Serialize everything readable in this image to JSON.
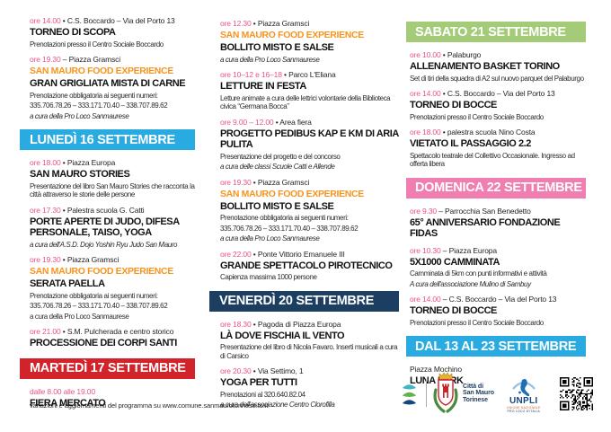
{
  "colors": {
    "time_pink": "#e9538c",
    "brand_orange": "#f7941e",
    "text": "#231f20",
    "banner_lightblue": "#29abe2",
    "banner_red": "#d2232a",
    "banner_navy": "#1c3e60",
    "banner_green": "#a4cc78",
    "banner_pink": "#f07eb0"
  },
  "footer": {
    "text": "variazioni e aggiornamenti del programma su www.comune.sanmaurotorinese.to.it"
  },
  "logos": {
    "arcs_icon": "festival-arcs-logo",
    "crest_icon": "san-mauro-coat-of-arms",
    "qr_icon": "qr-code",
    "city": {
      "line1": "Città di",
      "line2": "San Mauro",
      "line3": "Torinese"
    },
    "unpli": {
      "label": "UNPLI",
      "sub1": "UNIONE NAZIONALE",
      "sub2": "PRO LOCO D'ITALIA"
    }
  },
  "columns": [
    {
      "blocks": [
        {
          "kind": "event",
          "time": "ore 14.00",
          "sep": "•",
          "place": "C.S. Boccardo – Via del Porto 13",
          "title": "TORNEO DI SCOPA",
          "lines": [
            {
              "t": "Prenotazioni presso il Centro Sociale Boccardo"
            }
          ]
        },
        {
          "kind": "event",
          "time": "ore 19.30",
          "sep": "–",
          "place": "Piazza Gramsci",
          "brand": "SAN MAURO FOOD EXPERIENCE",
          "title": "GRAN GRIGLIATA MISTA DI CARNE",
          "lines": [
            {
              "t": "Prenotazione obbligatoria ai seguenti numeri:"
            },
            {
              "t": "335.706.78.26 – 333.171.70.40 – 338.707.89.62"
            },
            {
              "t": "a cura della Pro Loco Sanmaurese",
              "i": true
            }
          ]
        },
        {
          "kind": "banner",
          "label": "LUNEDÌ 16 SETTEMBRE",
          "color": "#29abe2"
        },
        {
          "kind": "event",
          "time": "ore 18.00",
          "sep": "•",
          "place": "Piazza Europa",
          "title": "SAN MAURO STORIES",
          "lines": [
            {
              "t": "Presentazione del libro San Mauro Stories che racconta la città attraverso le storie delle persone"
            }
          ]
        },
        {
          "kind": "event",
          "time": "ore 17.30",
          "sep": "•",
          "place": "Palestra scuola G. Catti",
          "title": "PORTE APERTE DI JUDO, DIFESA PERSONALE, TAISO, YOGA",
          "lines": [
            {
              "t": "a cura dell'A.S.D. Dojo Yoshin Ryu Judo San Mauro",
              "i": true
            }
          ]
        },
        {
          "kind": "event",
          "time": "ore 19.30",
          "sep": "•",
          "place": "Piazza Gramsci",
          "brand": "SAN MAURO FOOD EXPERIENCE",
          "title": "SERATA PAELLA",
          "lines": [
            {
              "t": "Prenotazione obbligatoria ai seguenti numeri:"
            },
            {
              "t": "335.706.78.26 – 333.171.70.40 – 338.707.89.62"
            },
            {
              "t": "a cura della Pro Loco Sanmaurese"
            }
          ]
        },
        {
          "kind": "event",
          "time": "ore 21.00",
          "sep": "•",
          "place": "S.M. Pulcherada e centro storico",
          "title": "PROCESSIONE DEI CORPI SANTI",
          "lines": []
        },
        {
          "kind": "banner",
          "label": "MARTEDÌ 17 SETTEMBRE",
          "color": "#d2232a"
        },
        {
          "kind": "event",
          "time": "dalle 8.00 alle 19.00",
          "sep": "",
          "place": "",
          "title": "FIERA MERCATO",
          "lines": []
        }
      ]
    },
    {
      "blocks": [
        {
          "kind": "event",
          "time": "ore 12.30",
          "sep": "•",
          "place": "Piazza Gramsci",
          "brand": "SAN MAURO FOOD EXPERIENCE",
          "title": "BOLLITO MISTO E SALSE",
          "lines": [
            {
              "t": "a cura della Pro Loco Sanmaurese",
              "i": true
            }
          ]
        },
        {
          "kind": "event",
          "time": "ore 10–12 e 16–18",
          "sep": "•",
          "place": "Parco L'Eliana",
          "title": "LETTURE IN FESTA",
          "lines": [
            {
              "t": "Letture animate a cura delle lettrici volontarie della Biblioteca civica “Germana Bocca”"
            }
          ]
        },
        {
          "kind": "event",
          "time": "ore 9.00 – 12.00",
          "sep": "•",
          "place": "Area fiera",
          "title": "PROGETTO PEDIBUS KAP E KM DI ARIA PULITA",
          "lines": [
            {
              "t": "Presentazione del progetto e del concorso"
            },
            {
              "t": "a cura delle classi Scuole Catti e Allende",
              "i": true
            }
          ]
        },
        {
          "kind": "event",
          "time": "ore 19.30",
          "sep": "•",
          "place": "Piazza Gramsci",
          "brand": "SAN MAURO FOOD EXPERIENCE",
          "title": "BOLLITO MISTO E SALSE",
          "lines": [
            {
              "t": "Prenotazione obbligatoria ai seguenti numeri:"
            },
            {
              "t": "335.706.78.26 – 333.171.70.40 – 338.707.89.62"
            },
            {
              "t": "a cura della Pro Loco Sanmaurese",
              "i": true
            }
          ]
        },
        {
          "kind": "event",
          "time": "ore 22.00",
          "sep": "•",
          "place": "Ponte Vittorio Emanuele III",
          "title": "GRANDE SPETTACOLO PIROTECNICO",
          "lines": [
            {
              "t": "Capienza massima 1000 persone"
            }
          ]
        },
        {
          "kind": "banner",
          "label": "VENERDÌ 20 SETTEMBRE",
          "color": "#1c3e60"
        },
        {
          "kind": "event",
          "time": "ore 18.30",
          "sep": "•",
          "place": "Pagoda di Piazza Europa",
          "title": "LÀ DOVE FISCHIA IL VENTO",
          "lines": [
            {
              "t": "Presentazione del libro di Nicola Favaro. Inserti musicali a cura di Carsico"
            }
          ]
        },
        {
          "kind": "event",
          "time": "ore 20.30",
          "sep": "•",
          "place": "Via Settimo, 1",
          "title": "YOGA PER TUTTI",
          "lines": [
            {
              "t": "Prenotazioni al 320.640.82.04"
            },
            {
              "t": "a cura dell'associazione Centro Clorofilla",
              "i": true
            }
          ]
        }
      ]
    },
    {
      "blocks": [
        {
          "kind": "banner",
          "label": "SABATO 21 SETTEMBRE",
          "color": "#a4cc78"
        },
        {
          "kind": "event",
          "time": "ore 10.00",
          "sep": "•",
          "place": "Palaburgo",
          "title": "ALLENAMENTO BASKET TORINO",
          "lines": [
            {
              "t": "Set di tiri della squadra di A2 sul nuovo parquet del Palaburgo"
            }
          ]
        },
        {
          "kind": "event",
          "time": "ore 14.00",
          "sep": "•",
          "place": "C.S. Boccardo – Via del Porto 13",
          "title": "TORNEO DI BOCCE",
          "lines": [
            {
              "t": "Prenotazioni presso il Centro Sociale Boccardo"
            }
          ]
        },
        {
          "kind": "event",
          "time": "ore 18.00",
          "sep": "•",
          "place": "palestra scuola Nino Costa",
          "title": "VIETATO IL PASSAGGIO 2.2",
          "lines": [
            {
              "t": "Spettacolo teatrale del Collettivo Occasionale. Ingresso ad offerta libera"
            }
          ]
        },
        {
          "kind": "banner",
          "label": "DOMENICA 22 SETTEMBRE",
          "color": "#f07eb0"
        },
        {
          "kind": "event",
          "time": "ore 9.30",
          "sep": "–",
          "place": "Parrocchia San Benedetto",
          "title": "65° ANNIVERSARIO FONDAZIONE FIDAS",
          "lines": []
        },
        {
          "kind": "event",
          "time": "ore 10.30",
          "sep": "–",
          "place": "Piazza Europa",
          "title": "5X1000 CAMMINATA",
          "lines": [
            {
              "t": "Camminata di 5km con punti informativi e attività"
            },
            {
              "t": "A cura dell'associazione Mulino di Sambuy",
              "i": true
            }
          ]
        },
        {
          "kind": "event",
          "time": "ore 14.00",
          "sep": "–",
          "place": "C.S. Boccardo – Via del Porto 13",
          "title": "TORNEO DI BOCCE",
          "lines": [
            {
              "t": "Prenotazioni presso il Centro Sociale Boccardo"
            }
          ]
        },
        {
          "kind": "banner",
          "label": "DAL 13 AL 23 SETTEMBRE",
          "color": "#29abe2"
        },
        {
          "kind": "event",
          "lead": "Piazza Mochino",
          "title": "LUNA PARK",
          "lines": []
        }
      ]
    }
  ]
}
